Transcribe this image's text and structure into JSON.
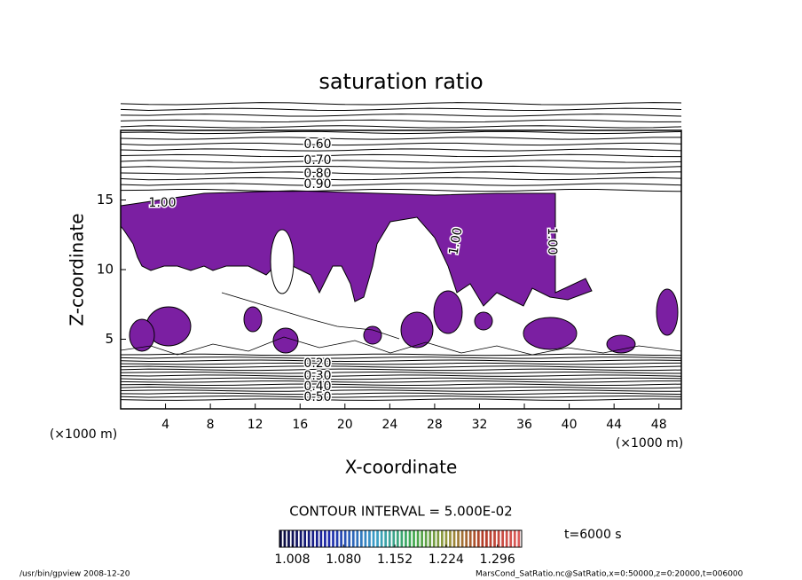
{
  "chart_data": {
    "type": "contour",
    "title": "saturation ratio",
    "xlabel": "X-coordinate",
    "ylabel": "Z-coordinate",
    "x_unit_left": "(×1000 m)",
    "x_unit_right": "(×1000 m)",
    "xlim": [
      0,
      50
    ],
    "ylim": [
      0,
      20
    ],
    "xticks": [
      4,
      8,
      12,
      16,
      20,
      24,
      28,
      32,
      36,
      40,
      44,
      48
    ],
    "yticks": [
      5,
      10,
      15
    ],
    "fill_color": "#7b1fa2",
    "contour_levels": [
      0.2,
      0.25,
      0.3,
      0.35,
      0.4,
      0.45,
      0.5,
      0.55,
      0.6,
      0.65,
      0.7,
      0.75,
      0.8,
      0.85,
      0.9,
      0.95
    ],
    "contour_labels": [
      {
        "value": 0.6,
        "label": "0.60"
      },
      {
        "value": 0.7,
        "label": "0.70"
      },
      {
        "value": 0.8,
        "label": "0.80"
      },
      {
        "value": 0.9,
        "label": "0.90"
      },
      {
        "value": 1,
        "label": "1.00"
      },
      {
        "value": 1,
        "label": "1.00"
      },
      {
        "value": 1,
        "label": "1.00"
      },
      {
        "value": 0.2,
        "label": "0.20"
      },
      {
        "value": 0.3,
        "label": "0.30"
      },
      {
        "value": 0.4,
        "label": "0.40"
      },
      {
        "value": 0.5,
        "label": "0.50"
      }
    ],
    "contour_interval": "CONTOUR INTERVAL = 5.000E-02",
    "colorbar": {
      "lim": [
        0.99,
        1.33
      ],
      "ticks": [
        1.008,
        {
          "value": 1.08,
          "label": "1.080"
        },
        1.152,
        1.224,
        1.296
      ]
    },
    "time_label": "t=6000 s",
    "footer_left": "/usr/bin/gpview   2008-12-20",
    "footer_right": "MarsCond_SatRatio.nc@SatRatio,x=0:50000,z=0:20000,t=006000"
  }
}
